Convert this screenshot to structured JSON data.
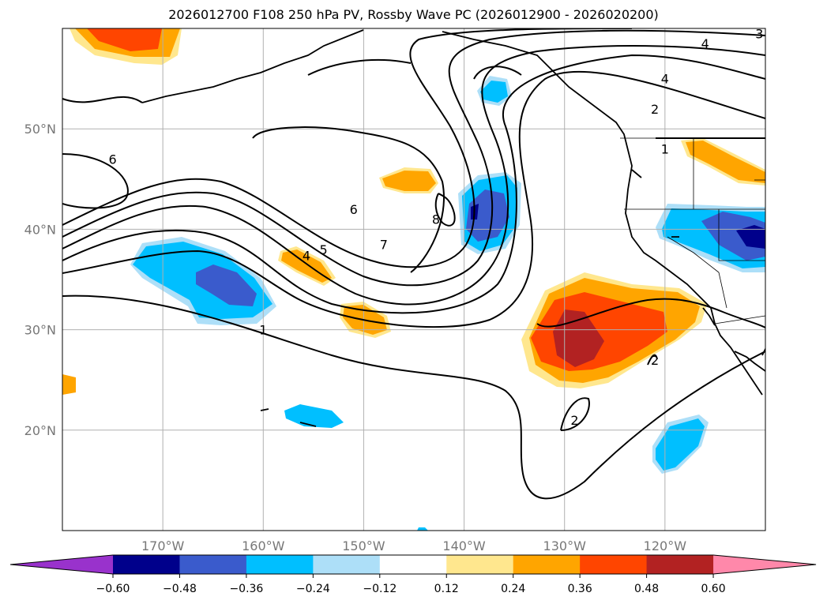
{
  "title": "2026012700 F108 250 hPa PV, Rossby Wave PC (2026012900 - 2026020200)",
  "latitudes": [
    {
      "label": "50°N",
      "lat": 50
    },
    {
      "label": "40°N",
      "lat": 40
    },
    {
      "label": "30°N",
      "lat": 30
    },
    {
      "label": "20°N",
      "lat": 20
    }
  ],
  "longitudes": [
    {
      "label": "170°W",
      "lon": -170
    },
    {
      "label": "160°W",
      "lon": -160
    },
    {
      "label": "150°W",
      "lon": -150
    },
    {
      "label": "140°W",
      "lon": -140
    },
    {
      "label": "130°W",
      "lon": -130
    },
    {
      "label": "120°W",
      "lon": -120
    }
  ],
  "map_extent": {
    "lon_min": -180,
    "lon_max": -110,
    "lat_min": 10,
    "lat_max": 60
  },
  "colorbar": {
    "colors": [
      "#9932CC",
      "#00008B",
      "#3A5BCC",
      "#00BFFF",
      "#ADDFF8",
      "#FFFFFF",
      "#FFE78E",
      "#FFA500",
      "#FF4500",
      "#B22222",
      "#FF88AA"
    ],
    "tick_labels": [
      "−0.60",
      "−0.48",
      "−0.36",
      "−0.24",
      "−0.12",
      "0.12",
      "0.24",
      "0.36",
      "0.48",
      "0.60"
    ]
  },
  "contour_labels": [
    {
      "text": "1",
      "lon": -160,
      "lat": 30
    },
    {
      "text": "1",
      "lon": -120,
      "lat": 48
    },
    {
      "text": "2",
      "lon": -129,
      "lat": 21
    },
    {
      "text": "2",
      "lon": -121,
      "lat": 27
    },
    {
      "text": "2",
      "lon": -121,
      "lat": 52
    },
    {
      "text": "3",
      "lon": -110.6,
      "lat": 59.5
    },
    {
      "text": "4",
      "lon": -120,
      "lat": 55
    },
    {
      "text": "4",
      "lon": -116,
      "lat": 58.5
    },
    {
      "text": "4",
      "lon": -155.7,
      "lat": 37.4
    },
    {
      "text": "5",
      "lon": -154,
      "lat": 38
    },
    {
      "text": "6",
      "lon": -151,
      "lat": 42
    },
    {
      "text": "6",
      "lon": -175,
      "lat": 47
    },
    {
      "text": "7",
      "lon": -148,
      "lat": 38.5
    },
    {
      "text": "8",
      "lon": -142.8,
      "lat": 41
    }
  ]
}
